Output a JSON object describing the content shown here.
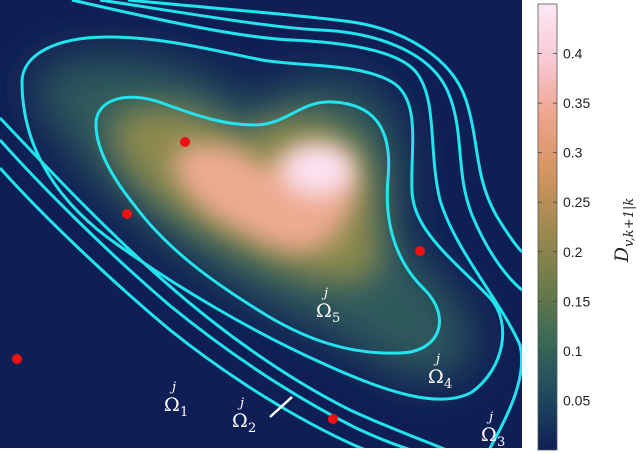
{
  "chart_data": {
    "type": "heatmap",
    "title": "",
    "colorbar": {
      "label": "D_{v,k+1|k}",
      "label_main": "D",
      "label_sub": "v,k+1|k",
      "range": [
        0,
        0.45
      ],
      "ticks": [
        "0.05",
        "0.1",
        "0.15",
        "0.2",
        "0.25",
        "0.3",
        "0.35",
        "0.4"
      ],
      "tick_values": [
        0.05,
        0.1,
        0.15,
        0.2,
        0.25,
        0.3,
        0.35,
        0.4
      ],
      "colormap": [
        "#0f1f55",
        "#1f4a5e",
        "#3c6a55",
        "#6f7c48",
        "#a08a50",
        "#d59462",
        "#eea58c",
        "#f8c8d4",
        "#fde8f6"
      ]
    },
    "density_peak": 0.45,
    "contours": [
      {
        "label": "Ω",
        "superscript": "j",
        "subscript": "1"
      },
      {
        "label": "Ω",
        "superscript": "j",
        "subscript": "2"
      },
      {
        "label": "Ω",
        "superscript": "j",
        "subscript": "3"
      },
      {
        "label": "Ω",
        "superscript": "j",
        "subscript": "4"
      },
      {
        "label": "Ω",
        "superscript": "j",
        "subscript": "5"
      }
    ],
    "contour_color": "#22e4ee",
    "point_color": "#ee1111",
    "points": 5,
    "axes": {
      "ticks_visible": false,
      "grid": false
    }
  }
}
